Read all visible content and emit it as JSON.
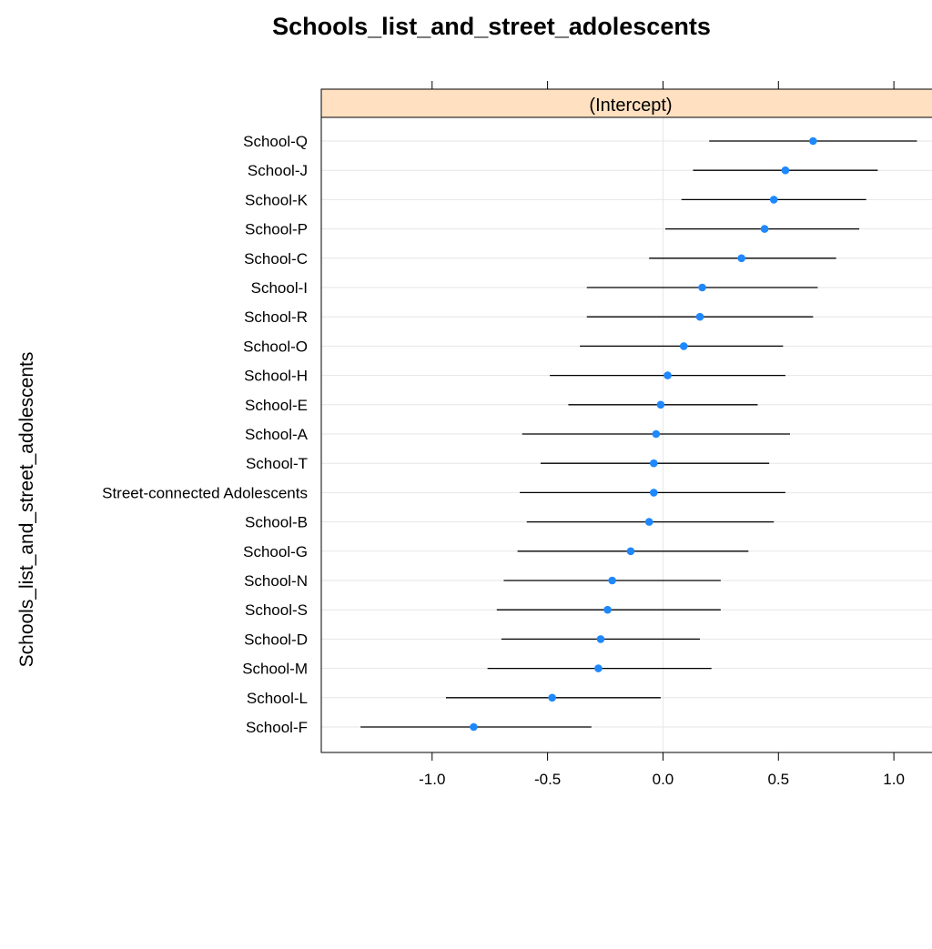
{
  "chart_data": {
    "type": "scatter",
    "title": "Schools_list_and_street_adolescents",
    "ylabel": "Schools_list_and_street_adolescents",
    "xlabel": "",
    "panel_label": "(Intercept)",
    "xlim": [
      -1.48,
      1.24
    ],
    "xticks": [
      -1.0,
      -0.5,
      0.0,
      0.5,
      1.0
    ],
    "xtick_labels": [
      "-1.0",
      "-0.5",
      "0.0",
      "0.5",
      "1.0"
    ],
    "grid": true,
    "point_color": "#1e88ff",
    "strip_color": "#ffe0c0",
    "categories": [
      "School-Q",
      "School-J",
      "School-K",
      "School-P",
      "School-C",
      "School-I",
      "School-R",
      "School-O",
      "School-H",
      "School-E",
      "School-A",
      "School-T",
      "Street-connected Adolescents",
      "School-B",
      "School-G",
      "School-N",
      "School-S",
      "School-D",
      "School-M",
      "School-L",
      "School-F"
    ],
    "estimates": [
      0.65,
      0.53,
      0.48,
      0.44,
      0.34,
      0.17,
      0.16,
      0.09,
      0.02,
      -0.01,
      -0.03,
      -0.04,
      -0.04,
      -0.06,
      -0.14,
      -0.22,
      -0.24,
      -0.27,
      -0.28,
      -0.48,
      -0.82
    ],
    "lower": [
      0.2,
      0.13,
      0.08,
      0.01,
      -0.06,
      -0.33,
      -0.33,
      -0.36,
      -0.49,
      -0.41,
      -0.61,
      -0.53,
      -0.62,
      -0.59,
      -0.63,
      -0.69,
      -0.72,
      -0.7,
      -0.76,
      -0.94,
      -1.31
    ],
    "upper": [
      1.1,
      0.93,
      0.88,
      0.85,
      0.75,
      0.67,
      0.65,
      0.52,
      0.53,
      0.41,
      0.55,
      0.46,
      0.53,
      0.48,
      0.37,
      0.25,
      0.25,
      0.16,
      0.21,
      -0.01,
      -0.31
    ]
  }
}
